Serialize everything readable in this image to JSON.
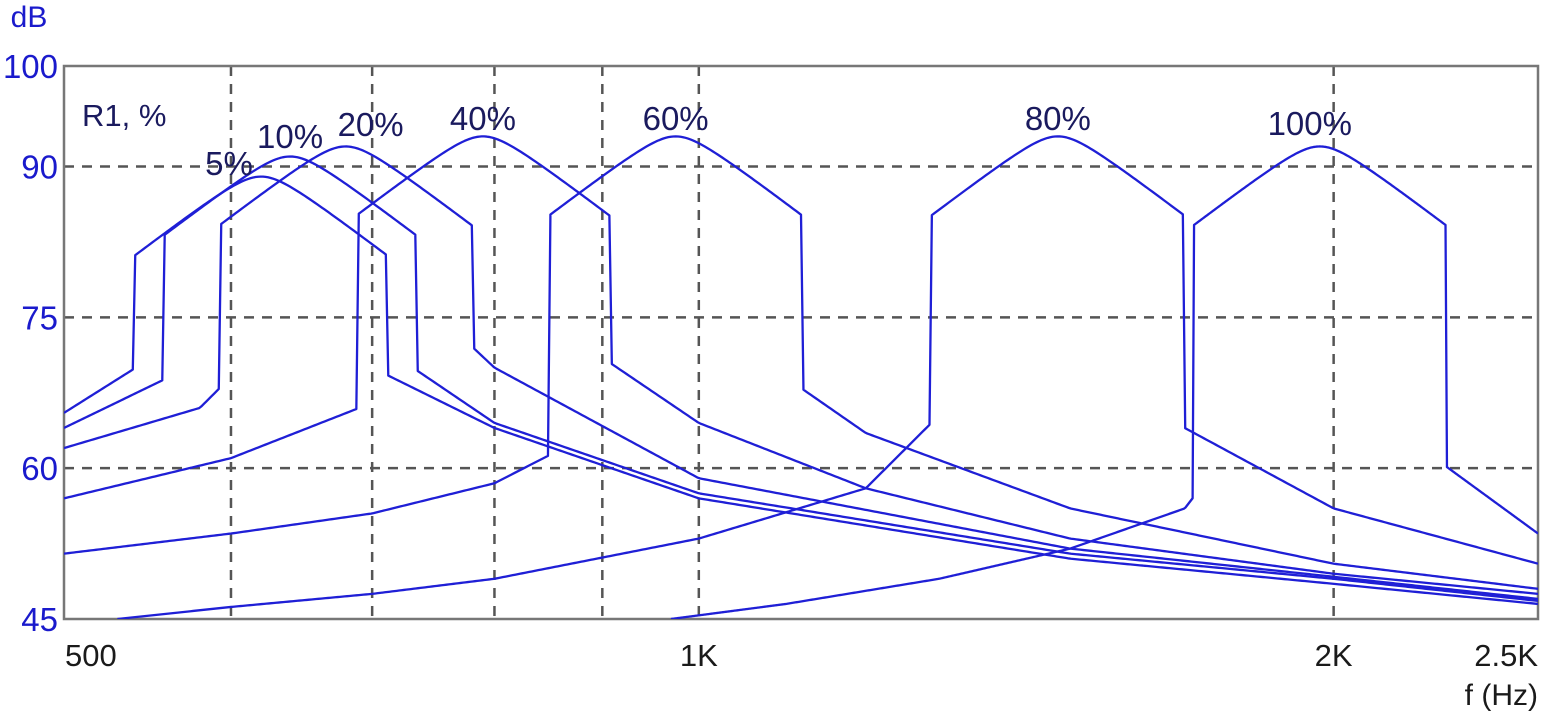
{
  "chart_data": {
    "type": "line",
    "title": "",
    "ylabel": "dB",
    "xlabel": "f (Hz)",
    "x_scale": "log",
    "xlim": [
      500,
      2500
    ],
    "ylim": [
      45,
      100
    ],
    "x_ticks": [
      {
        "value": 500,
        "label": "500"
      },
      {
        "value": 1000,
        "label": "1K"
      },
      {
        "value": 2000,
        "label": "2K"
      },
      {
        "value": 2500,
        "label": "2.5K"
      }
    ],
    "x_gridlines": [
      600,
      700,
      800,
      900,
      1000,
      2000
    ],
    "y_ticks": [
      45,
      60,
      75,
      90,
      100
    ],
    "y_tick_labels": [
      "45",
      "60",
      "75",
      "90",
      "100"
    ],
    "grid": true,
    "legend_title": "R1, %",
    "colors": {
      "curves": "#1f1fd6",
      "axis_text": "#1a1acc",
      "labels": "#1a1a5e",
      "grid": "#555555",
      "frame": "#777777"
    },
    "series": [
      {
        "name": "5%",
        "peak_hz": 620,
        "peak_db": 89,
        "points": [
          [
            500,
            65.5
          ],
          [
            560,
            72
          ],
          [
            600,
            80.5
          ],
          [
            620,
            89
          ],
          [
            650,
            78
          ],
          [
            700,
            70
          ],
          [
            800,
            64
          ],
          [
            1000,
            57
          ],
          [
            1500,
            51
          ],
          [
            2000,
            48.5
          ],
          [
            2500,
            46.5
          ]
        ]
      },
      {
        "name": "10%",
        "peak_hz": 640,
        "peak_db": 91,
        "points": [
          [
            500,
            64
          ],
          [
            560,
            69
          ],
          [
            610,
            78
          ],
          [
            640,
            91
          ],
          [
            670,
            80
          ],
          [
            720,
            71
          ],
          [
            800,
            64.5
          ],
          [
            1000,
            57.5
          ],
          [
            1500,
            51.5
          ],
          [
            2000,
            49
          ],
          [
            2500,
            46.8
          ]
        ]
      },
      {
        "name": "20%",
        "peak_hz": 680,
        "peak_db": 92,
        "points": [
          [
            500,
            62
          ],
          [
            580,
            66
          ],
          [
            640,
            75
          ],
          [
            680,
            92
          ],
          [
            720,
            79
          ],
          [
            800,
            70
          ],
          [
            1000,
            59
          ],
          [
            1500,
            52
          ],
          [
            2000,
            49.2
          ],
          [
            2500,
            47
          ]
        ]
      },
      {
        "name": "40%",
        "peak_hz": 790,
        "peak_db": 93,
        "points": [
          [
            500,
            57
          ],
          [
            600,
            61
          ],
          [
            700,
            66.5
          ],
          [
            760,
            77
          ],
          [
            790,
            93
          ],
          [
            830,
            78
          ],
          [
            900,
            71
          ],
          [
            1000,
            64.5
          ],
          [
            1200,
            58
          ],
          [
            1500,
            53
          ],
          [
            2000,
            49.5
          ],
          [
            2500,
            47.5
          ]
        ]
      },
      {
        "name": "60%",
        "peak_hz": 975,
        "peak_db": 93,
        "points": [
          [
            500,
            51.5
          ],
          [
            600,
            53.5
          ],
          [
            700,
            55.5
          ],
          [
            800,
            58.5
          ],
          [
            900,
            64
          ],
          [
            950,
            78
          ],
          [
            975,
            93
          ],
          [
            1000,
            80
          ],
          [
            1100,
            69
          ],
          [
            1200,
            63.5
          ],
          [
            1500,
            56
          ],
          [
            2000,
            50.5
          ],
          [
            2500,
            48
          ]
        ]
      },
      {
        "name": "80%",
        "peak_hz": 1480,
        "peak_db": 93,
        "points": [
          [
            530,
            45
          ],
          [
            600,
            46.2
          ],
          [
            700,
            47.5
          ],
          [
            800,
            49
          ],
          [
            1000,
            53
          ],
          [
            1200,
            58
          ],
          [
            1400,
            72
          ],
          [
            1480,
            93
          ],
          [
            1550,
            74
          ],
          [
            1700,
            64
          ],
          [
            2000,
            56
          ],
          [
            2500,
            50.5
          ]
        ]
      },
      {
        "name": "100%",
        "peak_hz": 1970,
        "peak_db": 92,
        "points": [
          [
            970,
            45
          ],
          [
            1100,
            46.5
          ],
          [
            1300,
            49
          ],
          [
            1500,
            52
          ],
          [
            1700,
            56
          ],
          [
            1850,
            66
          ],
          [
            1970,
            92
          ],
          [
            2050,
            73
          ],
          [
            2200,
            62
          ],
          [
            2500,
            53.5
          ]
        ]
      }
    ]
  }
}
